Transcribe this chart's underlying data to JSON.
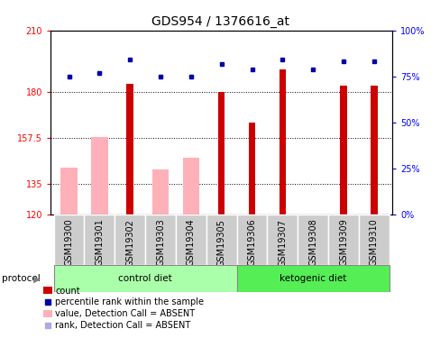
{
  "title": "GDS954 / 1376616_at",
  "samples": [
    "GSM19300",
    "GSM19301",
    "GSM19302",
    "GSM19303",
    "GSM19304",
    "GSM19305",
    "GSM19306",
    "GSM19307",
    "GSM19308",
    "GSM19309",
    "GSM19310"
  ],
  "red_values": [
    120,
    120,
    184,
    120,
    120,
    180,
    165,
    191,
    120,
    183,
    183
  ],
  "pink_values": [
    143,
    158,
    null,
    142,
    148,
    null,
    null,
    null,
    null,
    null,
    null
  ],
  "blue_values": [
    75,
    77,
    84,
    75,
    75,
    82,
    79,
    84,
    79,
    83,
    83
  ],
  "light_blue_values": [
    75,
    77,
    null,
    75,
    75,
    null,
    null,
    null,
    null,
    null,
    null
  ],
  "ylim_left": [
    120,
    210
  ],
  "ylim_right": [
    0,
    100
  ],
  "yticks_left": [
    120,
    135,
    157.5,
    180,
    210
  ],
  "yticks_right": [
    0,
    25,
    50,
    75,
    100
  ],
  "ytick_labels_left": [
    "120",
    "135",
    "157.5",
    "180",
    "210"
  ],
  "ytick_labels_right": [
    "0%",
    "25%",
    "50%",
    "75%",
    "100%"
  ],
  "hgrid_values": [
    135,
    157.5,
    180
  ],
  "control_count": 6,
  "ketogenic_count": 5,
  "red_color": "#CC0000",
  "pink_color": "#FFB0B8",
  "blue_color": "#0000AA",
  "light_blue_color": "#AAAADD",
  "control_diet_color": "#AAFFAA",
  "ketogenic_diet_color": "#55EE55",
  "gray_box_color": "#CCCCCC",
  "title_fontsize": 10,
  "tick_fontsize": 7,
  "legend_fontsize": 7,
  "label_fontsize": 7.5,
  "pink_bar_width": 0.55,
  "red_bar_width": 0.22
}
